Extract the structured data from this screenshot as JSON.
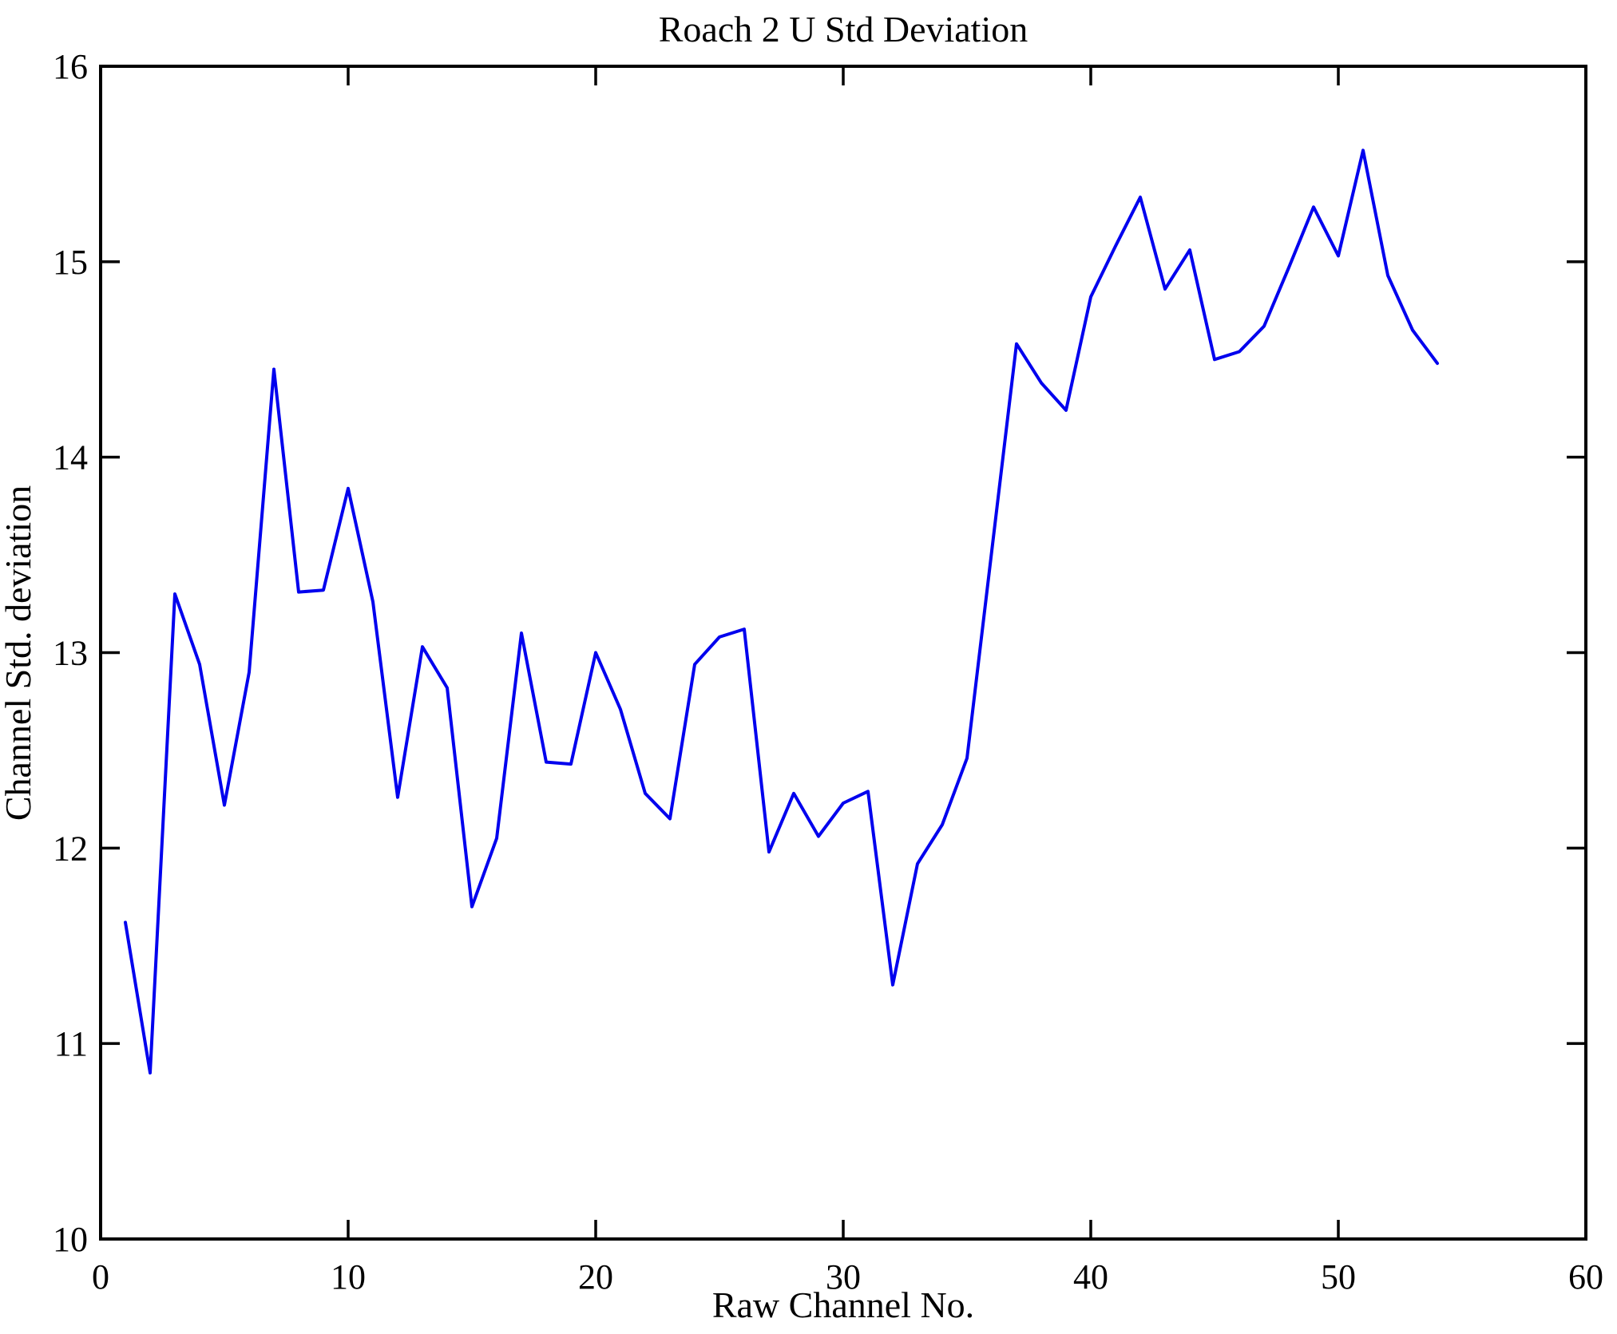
{
  "chart_data": {
    "type": "line",
    "title": "Roach 2 U Std Deviation",
    "xlabel": "Raw Channel No.",
    "ylabel": "Channel Std. deviation",
    "xlim": [
      0,
      60
    ],
    "ylim": [
      10,
      16
    ],
    "xticks": [
      0,
      10,
      20,
      30,
      40,
      50,
      60
    ],
    "yticks": [
      10,
      11,
      12,
      13,
      14,
      15,
      16
    ],
    "grid": false,
    "legend": "none",
    "line_color": "#0000ee",
    "axis_color": "#000000",
    "background_color": "#ffffff",
    "series_name": "Channel Std. deviation",
    "x": [
      1,
      2,
      3,
      4,
      5,
      6,
      7,
      8,
      9,
      10,
      11,
      12,
      13,
      14,
      15,
      16,
      17,
      18,
      19,
      20,
      21,
      22,
      23,
      24,
      25,
      26,
      27,
      28,
      29,
      30,
      31,
      32,
      33,
      34,
      35,
      36,
      37,
      38,
      39,
      40,
      41,
      42,
      43,
      44,
      45,
      46,
      47,
      48,
      49,
      50,
      51,
      52,
      53,
      54
    ],
    "y": [
      11.62,
      10.85,
      13.3,
      12.94,
      12.22,
      12.9,
      14.45,
      13.31,
      13.32,
      13.84,
      13.26,
      12.26,
      13.03,
      12.82,
      11.7,
      12.05,
      13.1,
      12.44,
      12.43,
      13.0,
      12.71,
      12.28,
      12.15,
      12.94,
      13.08,
      13.12,
      11.98,
      12.28,
      12.06,
      12.23,
      12.29,
      11.3,
      11.92,
      12.12,
      12.46,
      13.52,
      14.58,
      14.38,
      14.24,
      14.82,
      15.08,
      15.33,
      14.86,
      15.06,
      14.5,
      14.54,
      14.67,
      14.97,
      15.28,
      15.03,
      15.57,
      14.93,
      14.65,
      14.48
    ]
  }
}
